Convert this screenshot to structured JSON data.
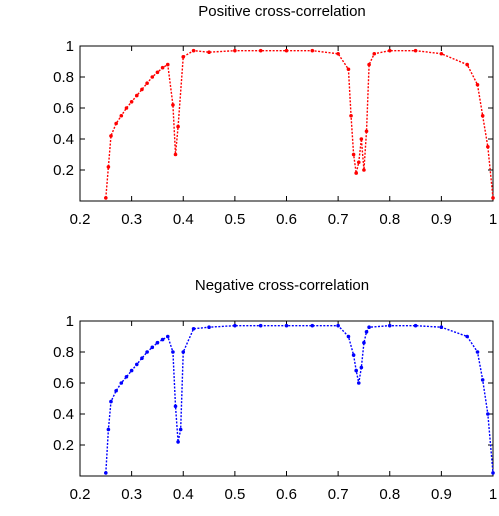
{
  "chart_data": [
    {
      "type": "scatter",
      "title": "Positive cross-correlation",
      "xlabel": "",
      "ylabel": "",
      "xlim": [
        0.2,
        1.0
      ],
      "ylim": [
        0.0,
        1.0
      ],
      "xticks": [
        "0.2",
        "0.3",
        "0.4",
        "0.5",
        "0.6",
        "0.7",
        "0.8",
        "0.9",
        "1"
      ],
      "yticks": [
        "0.2",
        "0.4",
        "0.6",
        "0.8",
        "1"
      ],
      "grid": false,
      "color": "#ff0000",
      "series": [
        {
          "x": [
            0.25,
            0.255,
            0.26,
            0.27,
            0.28,
            0.29,
            0.3,
            0.31,
            0.32,
            0.33,
            0.34,
            0.35,
            0.36,
            0.37,
            0.38,
            0.385,
            0.39,
            0.4,
            0.42,
            0.45,
            0.5,
            0.55,
            0.6,
            0.65,
            0.7,
            0.72,
            0.725,
            0.73,
            0.735,
            0.74,
            0.745,
            0.75,
            0.755,
            0.76,
            0.77,
            0.8,
            0.85,
            0.9,
            0.95,
            0.97,
            0.98,
            0.99,
            1.0
          ],
          "y": [
            0.02,
            0.22,
            0.42,
            0.5,
            0.55,
            0.6,
            0.64,
            0.68,
            0.72,
            0.76,
            0.8,
            0.83,
            0.86,
            0.88,
            0.62,
            0.3,
            0.48,
            0.93,
            0.97,
            0.96,
            0.97,
            0.97,
            0.97,
            0.97,
            0.95,
            0.85,
            0.55,
            0.3,
            0.18,
            0.25,
            0.4,
            0.2,
            0.45,
            0.88,
            0.95,
            0.97,
            0.97,
            0.95,
            0.88,
            0.75,
            0.55,
            0.35,
            0.02
          ]
        }
      ]
    },
    {
      "type": "scatter",
      "title": "Negative cross-correlation",
      "xlabel": "",
      "ylabel": "",
      "xlim": [
        0.2,
        1.0
      ],
      "ylim": [
        0.0,
        1.0
      ],
      "xticks": [
        "0.2",
        "0.3",
        "0.4",
        "0.5",
        "0.6",
        "0.7",
        "0.8",
        "0.9",
        "1"
      ],
      "yticks": [
        "0.2",
        "0.4",
        "0.6",
        "0.8",
        "1"
      ],
      "grid": false,
      "color": "#0000ff",
      "series": [
        {
          "x": [
            0.25,
            0.255,
            0.26,
            0.27,
            0.28,
            0.29,
            0.3,
            0.31,
            0.32,
            0.33,
            0.34,
            0.35,
            0.36,
            0.37,
            0.38,
            0.385,
            0.39,
            0.395,
            0.4,
            0.42,
            0.45,
            0.5,
            0.55,
            0.6,
            0.65,
            0.7,
            0.72,
            0.73,
            0.735,
            0.74,
            0.745,
            0.75,
            0.755,
            0.76,
            0.8,
            0.85,
            0.9,
            0.95,
            0.97,
            0.98,
            0.99,
            1.0
          ],
          "y": [
            0.02,
            0.3,
            0.48,
            0.55,
            0.6,
            0.64,
            0.68,
            0.72,
            0.76,
            0.8,
            0.83,
            0.86,
            0.88,
            0.9,
            0.8,
            0.45,
            0.22,
            0.3,
            0.8,
            0.95,
            0.96,
            0.97,
            0.97,
            0.97,
            0.97,
            0.97,
            0.9,
            0.78,
            0.68,
            0.6,
            0.7,
            0.86,
            0.93,
            0.96,
            0.97,
            0.97,
            0.96,
            0.9,
            0.8,
            0.62,
            0.4,
            0.02
          ]
        }
      ]
    }
  ]
}
